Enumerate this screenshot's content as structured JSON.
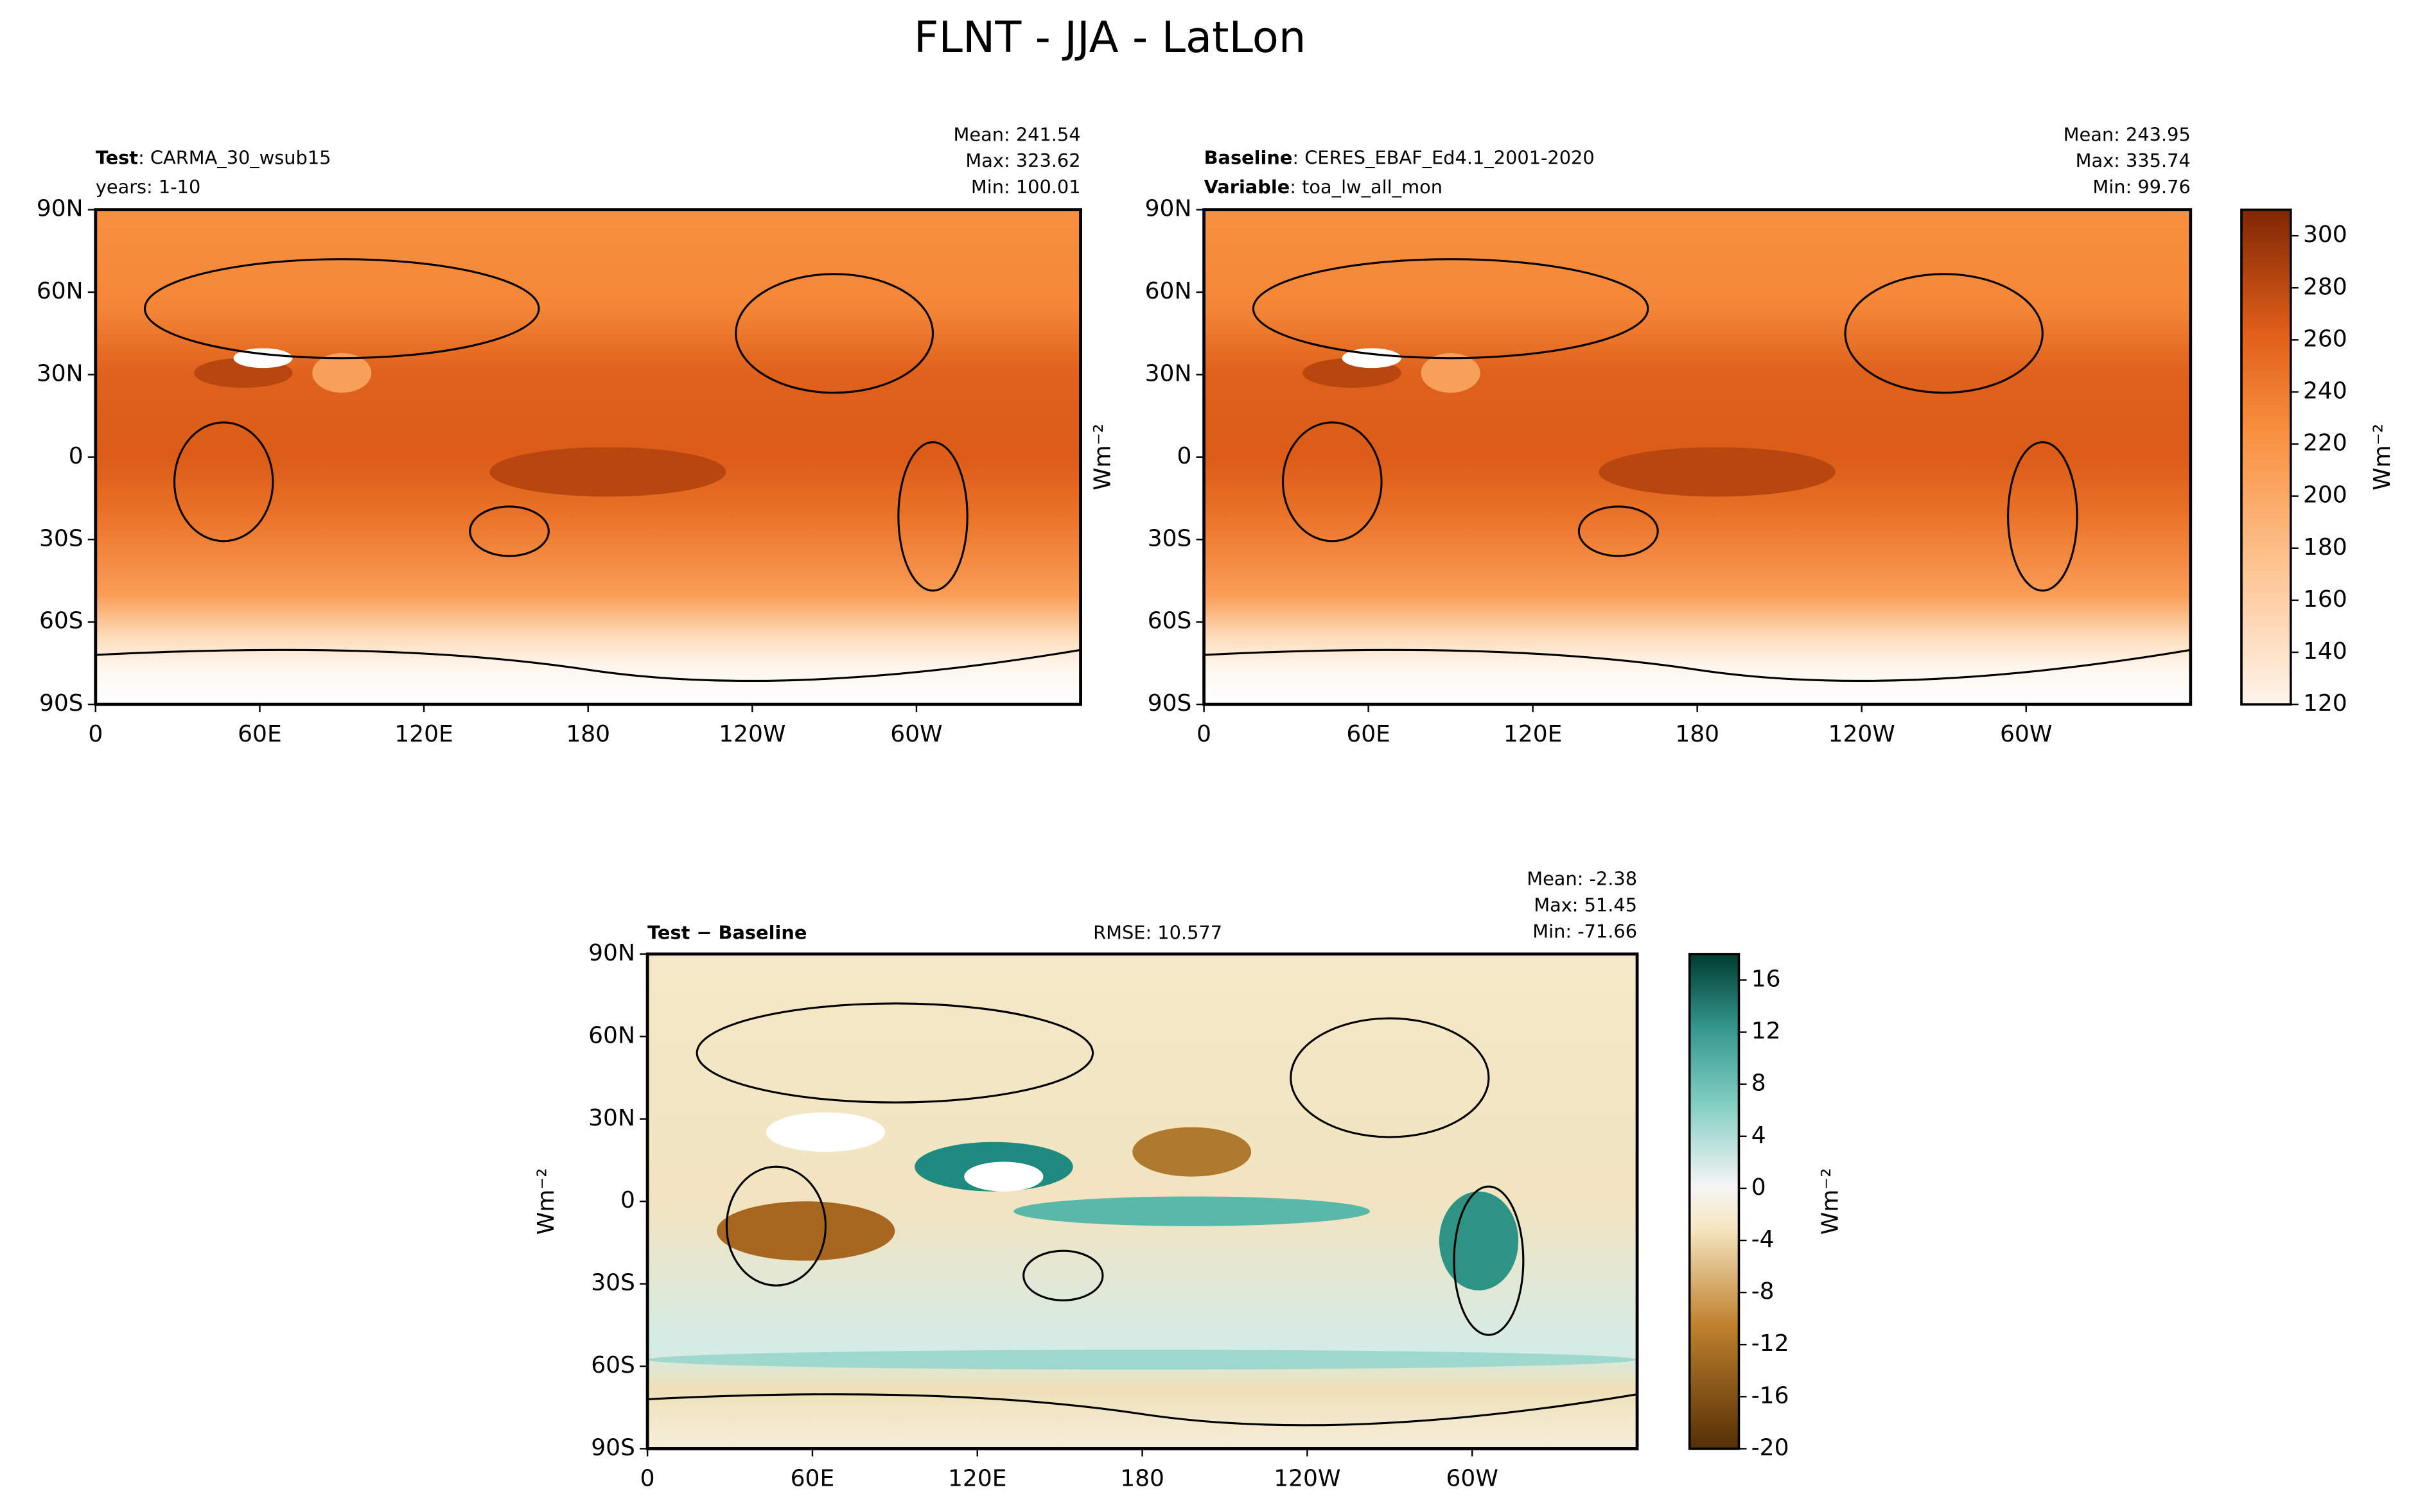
{
  "title": "FLNT - JJA - LatLon",
  "chart_data": [
    {
      "type": "map",
      "label_bold": "Test",
      "label": ": CARMA_30_wsub15",
      "line2": "years: 1-10",
      "stats": [
        "Mean: 241.54",
        "Max: 323.62",
        "Min: 100.01"
      ],
      "xlim": [
        0,
        360
      ],
      "xticks": [
        0,
        {
          "value": 60,
          "label": "60E"
        },
        {
          "value": 120,
          "label": "120E"
        },
        180,
        {
          "value": 240,
          "label": "120W"
        },
        {
          "value": 300,
          "label": "60W"
        }
      ],
      "ylim": [
        -90,
        90
      ],
      "yticks": [
        {
          "value": -90,
          "label": "90S"
        },
        {
          "value": -60,
          "label": "60S"
        },
        {
          "value": -30,
          "label": "30S"
        },
        0,
        {
          "value": 30,
          "label": "30N"
        },
        {
          "value": 60,
          "label": "60N"
        },
        {
          "value": 90,
          "label": "90N"
        }
      ]
    },
    {
      "type": "map",
      "label_bold": "Baseline",
      "label": ": CERES_EBAF_Ed4.1_2001-2020",
      "line2_bold": "Variable",
      "line2": ": toa_lw_all_mon",
      "stats": [
        "Mean: 243.95",
        "Max: 335.74",
        "Min: 99.76"
      ],
      "ylabel": "Wm⁻²",
      "xlim": [
        0,
        360
      ],
      "xticks": [
        0,
        {
          "value": 60,
          "label": "60E"
        },
        {
          "value": 120,
          "label": "120E"
        },
        180,
        {
          "value": 240,
          "label": "120W"
        },
        {
          "value": 300,
          "label": "60W"
        }
      ],
      "ylim": [
        -90,
        90
      ],
      "yticks": [
        {
          "value": -90,
          "label": "90S"
        },
        {
          "value": -60,
          "label": "60S"
        },
        {
          "value": -30,
          "label": "30S"
        },
        0,
        {
          "value": 30,
          "label": "30N"
        },
        {
          "value": 60,
          "label": "60N"
        },
        {
          "value": 90,
          "label": "90N"
        }
      ],
      "colorbar": {
        "lim": [
          120,
          310
        ],
        "ticks": [
          120,
          140,
          160,
          180,
          200,
          220,
          240,
          260,
          280,
          300
        ],
        "label": "Wm⁻²"
      }
    },
    {
      "type": "map",
      "label_bold": "Test − Baseline",
      "center": "RMSE: 10.577",
      "stats": [
        "Mean: -2.38",
        "Max: 51.45",
        "Min: -71.66"
      ],
      "ylabel": "Wm⁻²",
      "xlim": [
        0,
        360
      ],
      "xticks": [
        0,
        {
          "value": 60,
          "label": "60E"
        },
        {
          "value": 120,
          "label": "120E"
        },
        180,
        {
          "value": 240,
          "label": "120W"
        },
        {
          "value": 300,
          "label": "60W"
        }
      ],
      "ylim": [
        -90,
        90
      ],
      "yticks": [
        {
          "value": -90,
          "label": "90S"
        },
        {
          "value": -60,
          "label": "60S"
        },
        {
          "value": -30,
          "label": "30S"
        },
        0,
        {
          "value": 30,
          "label": "30N"
        },
        {
          "value": 60,
          "label": "60N"
        },
        {
          "value": 90,
          "label": "90N"
        }
      ],
      "colorbar": {
        "lim": [
          -20,
          18
        ],
        "ticks": [
          -20,
          -16,
          -12,
          -8,
          -4,
          0,
          4,
          8,
          12,
          16
        ],
        "label": "Wm⁻²"
      }
    }
  ]
}
